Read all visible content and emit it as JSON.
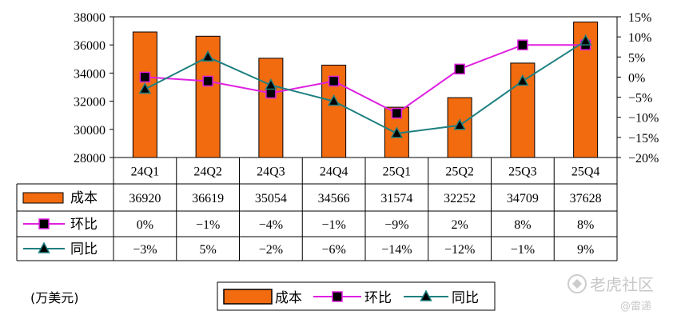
{
  "chart_data": {
    "type": "bar",
    "categories": [
      "24Q1",
      "24Q2",
      "24Q3",
      "24Q4",
      "25Q1",
      "25Q2",
      "25Q3",
      "25Q4"
    ],
    "series": [
      {
        "name": "成本",
        "type": "bar",
        "axis": "left",
        "color": "#f26b0f",
        "values": [
          36920,
          36619,
          35054,
          34566,
          31574,
          32252,
          34709,
          37628
        ]
      },
      {
        "name": "环比",
        "type": "line",
        "axis": "right",
        "color": "#e020e0",
        "marker": "square",
        "values": [
          0,
          -1,
          -4,
          -1,
          -9,
          2,
          8,
          8
        ]
      },
      {
        "name": "同比",
        "type": "line",
        "axis": "right",
        "color": "#1f8080",
        "marker": "triangle",
        "values": [
          -3,
          5,
          -2,
          -6,
          -14,
          -12,
          -1,
          9
        ]
      }
    ],
    "table_rows": [
      {
        "label": "成本",
        "cells": [
          "36920",
          "36619",
          "35054",
          "34566",
          "31574",
          "32252",
          "34709",
          "37628"
        ]
      },
      {
        "label": "环比",
        "cells": [
          "0%",
          "−1%",
          "−4%",
          "−1%",
          "−9%",
          "2%",
          "8%",
          "8%"
        ]
      },
      {
        "label": "同比",
        "cells": [
          "−3%",
          "5%",
          "−2%",
          "−6%",
          "−14%",
          "−12%",
          "−1%",
          "9%"
        ]
      }
    ],
    "left_axis": {
      "ylim": [
        28000,
        38000
      ],
      "ticks": [
        "38000",
        "36000",
        "34000",
        "32000",
        "30000",
        "28000"
      ]
    },
    "right_axis": {
      "ylim": [
        -20,
        15
      ],
      "ticks": [
        "15%",
        "10%",
        "5%",
        "0%",
        "−5%",
        "−10%",
        "−15%",
        "−20%"
      ]
    },
    "unit_label": "(万美元)",
    "legend": {
      "placement": "bottom",
      "items": [
        "成本",
        "环比",
        "同比"
      ]
    },
    "grid": false
  },
  "watermark": {
    "brand": "老虎社区",
    "handle": "@雷递"
  }
}
